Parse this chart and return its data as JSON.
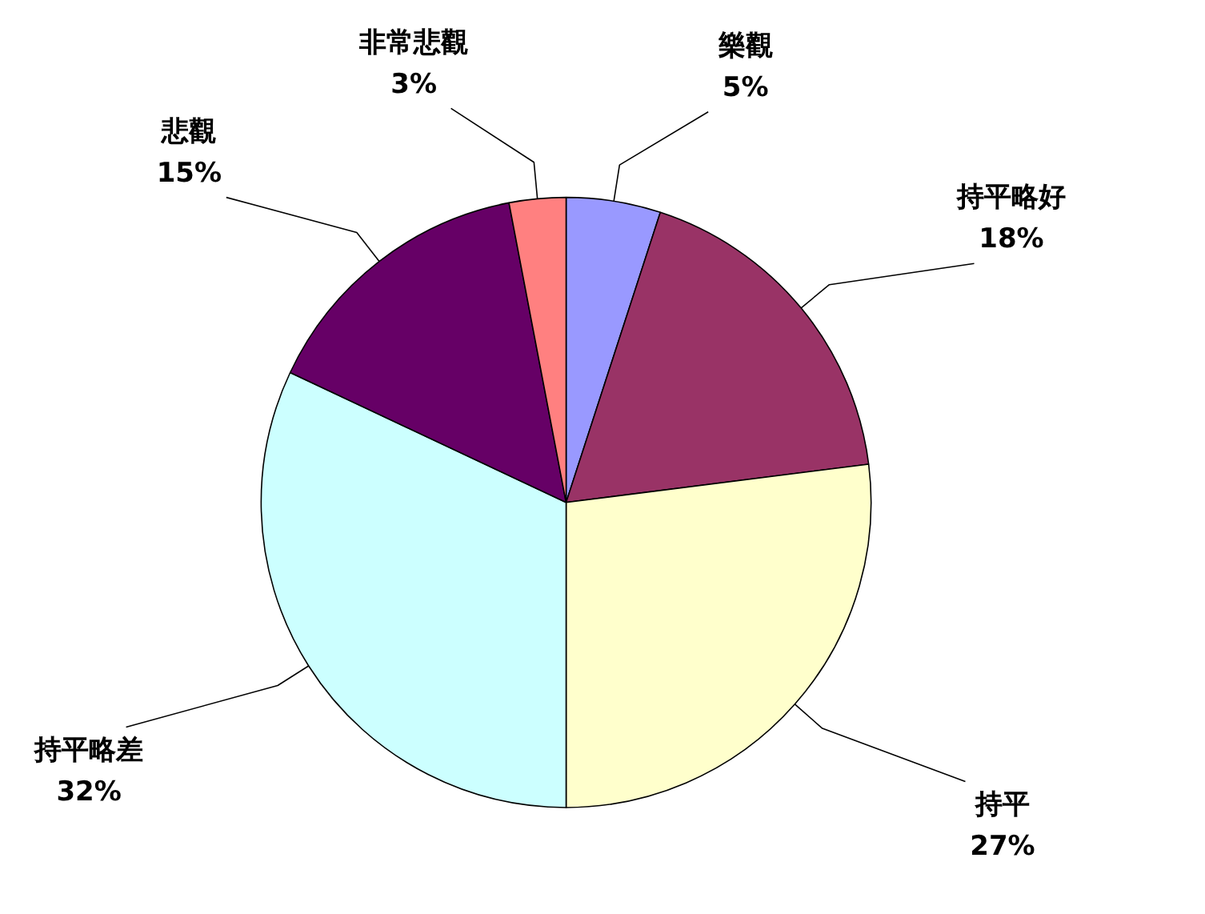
{
  "chart_data": {
    "type": "pie",
    "categories": [
      "樂觀",
      "持平略好",
      "持平",
      "持平略差",
      "悲觀",
      "非常悲觀"
    ],
    "values": [
      5,
      18,
      27,
      32,
      15,
      3
    ],
    "colors": [
      "#9999ff",
      "#993366",
      "#ffffcc",
      "#ccffff",
      "#660066",
      "#ff8080"
    ],
    "data_labels": true,
    "value_labels": [
      "5%",
      "18%",
      "27%",
      "32%",
      "15%",
      "3%"
    ]
  }
}
